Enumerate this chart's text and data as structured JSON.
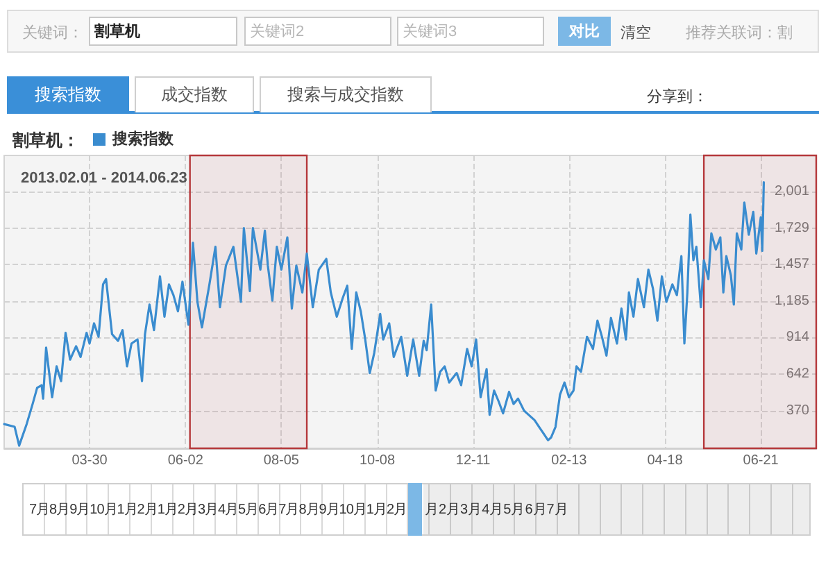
{
  "chart_data": {
    "type": "line",
    "subtitle": "2013.02.01 - 2014.06.23",
    "legend_title": "割草机：",
    "legend": "top left",
    "grid": true,
    "marker": "none",
    "x": [
      "2013-02-01",
      "2013-02-08",
      "2013-02-11",
      "2013-02-16",
      "2013-02-20",
      "2013-02-23",
      "2013-02-26",
      "2013-02-27",
      "2013-03-01",
      "2013-03-05",
      "2013-03-08",
      "2013-03-11",
      "2013-03-14",
      "2013-03-17",
      "2013-03-21",
      "2013-03-24",
      "2013-03-28",
      "2013-03-30",
      "2013-04-02",
      "2013-04-05",
      "2013-04-08",
      "2013-04-10",
      "2013-04-14",
      "2013-04-18",
      "2013-04-21",
      "2013-04-24",
      "2013-04-27",
      "2013-05-01",
      "2013-05-04",
      "2013-05-06",
      "2013-05-09",
      "2013-05-12",
      "2013-05-16",
      "2013-05-19",
      "2013-05-22",
      "2013-05-25",
      "2013-05-28",
      "2013-05-31",
      "2013-06-04",
      "2013-06-07",
      "2013-06-10",
      "2013-06-13",
      "2013-06-18",
      "2013-06-22",
      "2013-06-25",
      "2013-06-29",
      "2013-07-04",
      "2013-07-09",
      "2013-07-11",
      "2013-07-15",
      "2013-07-17",
      "2013-07-22",
      "2013-07-25",
      "2013-07-27",
      "2013-07-30",
      "2013-08-02",
      "2013-08-05",
      "2013-08-09",
      "2013-08-12",
      "2013-08-15",
      "2013-08-19",
      "2013-08-22",
      "2013-08-26",
      "2013-08-30",
      "2013-09-04",
      "2013-09-07",
      "2013-09-11",
      "2013-09-15",
      "2013-09-18",
      "2013-09-21",
      "2013-09-24",
      "2013-09-27",
      "2013-09-30",
      "2013-10-03",
      "2013-10-06",
      "2013-10-10",
      "2013-10-12",
      "2013-10-16",
      "2013-10-19",
      "2013-10-24",
      "2013-10-28",
      "2013-11-01",
      "2013-11-05",
      "2013-11-08",
      "2013-11-10",
      "2013-11-13",
      "2013-11-16",
      "2013-11-19",
      "2013-11-22",
      "2013-11-25",
      "2013-11-30",
      "2013-12-03",
      "2013-12-07",
      "2013-12-10",
      "2013-12-13",
      "2013-12-16",
      "2013-12-20",
      "2013-12-22",
      "2013-12-25",
      "2013-12-28",
      "2013-12-31",
      "2014-01-04",
      "2014-01-07",
      "2014-01-10",
      "2014-01-14",
      "2014-01-17",
      "2014-01-21",
      "2014-01-24",
      "2014-01-27",
      "2014-01-30",
      "2014-02-01",
      "2014-02-04",
      "2014-02-07",
      "2014-02-10",
      "2014-02-13",
      "2014-02-16",
      "2014-02-18",
      "2014-02-21",
      "2014-02-25",
      "2014-03-01",
      "2014-03-04",
      "2014-03-07",
      "2014-03-10",
      "2014-03-13",
      "2014-03-17",
      "2014-03-20",
      "2014-03-23",
      "2014-03-25",
      "2014-03-28",
      "2014-03-31",
      "2014-04-04",
      "2014-04-07",
      "2014-04-10",
      "2014-04-13",
      "2014-04-16",
      "2014-04-19",
      "2014-04-23",
      "2014-04-26",
      "2014-04-29",
      "2014-05-01",
      "2014-05-03",
      "2014-05-05",
      "2014-05-07",
      "2014-05-09",
      "2014-05-12",
      "2014-05-14",
      "2014-05-17",
      "2014-05-19",
      "2014-05-22",
      "2014-05-25",
      "2014-05-27",
      "2014-05-29",
      "2014-06-01",
      "2014-06-03",
      "2014-06-05",
      "2014-06-08",
      "2014-06-10",
      "2014-06-13",
      "2014-06-16",
      "2014-06-18",
      "2014-06-21",
      "2014-06-22",
      "2014-06-23"
    ],
    "series": [
      {
        "name": "搜索指数",
        "color": "#3a8ccf",
        "values": [
          270,
          250,
          110,
          270,
          420,
          540,
          560,
          460,
          840,
          470,
          700,
          590,
          950,
          750,
          850,
          770,
          950,
          870,
          1020,
          920,
          1310,
          1350,
          940,
          890,
          970,
          700,
          870,
          900,
          590,
          940,
          1160,
          970,
          1370,
          1070,
          1310,
          1230,
          1110,
          1330,
          1010,
          1620,
          1180,
          990,
          1310,
          1590,
          1140,
          1450,
          1590,
          1180,
          1730,
          1260,
          1730,
          1420,
          1710,
          1450,
          1190,
          1590,
          1420,
          1660,
          1130,
          1450,
          1250,
          1540,
          1140,
          1420,
          1500,
          1250,
          1070,
          1210,
          1300,
          830,
          1250,
          1110,
          900,
          650,
          800,
          1090,
          900,
          1020,
          770,
          920,
          630,
          900,
          630,
          890,
          820,
          1160,
          520,
          660,
          700,
          580,
          650,
          560,
          830,
          700,
          900,
          470,
          680,
          340,
          520,
          440,
          350,
          510,
          420,
          460,
          370,
          340,
          300,
          250,
          200,
          150,
          170,
          250,
          490,
          580,
          470,
          520,
          700,
          660,
          920,
          830,
          1040,
          920,
          780,
          1060,
          870,
          1130,
          900,
          1250,
          1070,
          1350,
          1140,
          1420,
          1280,
          1040,
          1370,
          1180,
          1310,
          1230,
          1520,
          870,
          1250,
          1830,
          1490,
          1590,
          1140,
          1490,
          1350,
          1690,
          1570,
          1660,
          1250,
          1520,
          1380,
          1160,
          1690,
          1570,
          1920,
          1680,
          1850,
          1540,
          1810,
          1560,
          2070
        ]
      }
    ],
    "xlim": [
      "2013-02-01",
      "2014-07-28"
    ],
    "xticks": [
      {
        "value": "2013-03-30",
        "label": "03-30"
      },
      {
        "value": "2013-06-02",
        "label": "06-02"
      },
      {
        "value": "2013-08-05",
        "label": "08-05"
      },
      {
        "value": "2013-10-08",
        "label": "10-08"
      },
      {
        "value": "2013-12-11",
        "label": "12-11"
      },
      {
        "value": "2014-02-13",
        "label": "02-13"
      },
      {
        "value": "2014-04-18",
        "label": "04-18"
      },
      {
        "value": "2014-06-21",
        "label": "06-21"
      }
    ],
    "ylim": [
      90,
      2270
    ],
    "yticks": [
      370,
      642,
      914,
      {
        "value": 1185,
        "label": "1,185"
      },
      {
        "value": 1457,
        "label": "1,457"
      },
      {
        "value": 1729,
        "label": "1,729"
      },
      {
        "value": 2001,
        "label": "2,001"
      }
    ],
    "bands": [
      {
        "axis": "x",
        "from": "2013-06-05",
        "to": "2013-08-22",
        "color": "#b5383b"
      },
      {
        "axis": "x",
        "from": "2014-05-14",
        "to": "2014-07-28",
        "color": "#b5383b"
      }
    ],
    "annotations": [
      "关键词：",
      "割草机",
      "关键词2",
      "关键词3",
      "对比",
      "清空",
      "推荐关联词：割",
      "搜索指数",
      "成交指数",
      "搜索与成交指数",
      "分享到：",
      "7月8月9月10月1月2月1月2月3月4月5月6月7月8月9月10月1月2月",
      "月2月3月4月5月6月7月"
    ]
  }
}
